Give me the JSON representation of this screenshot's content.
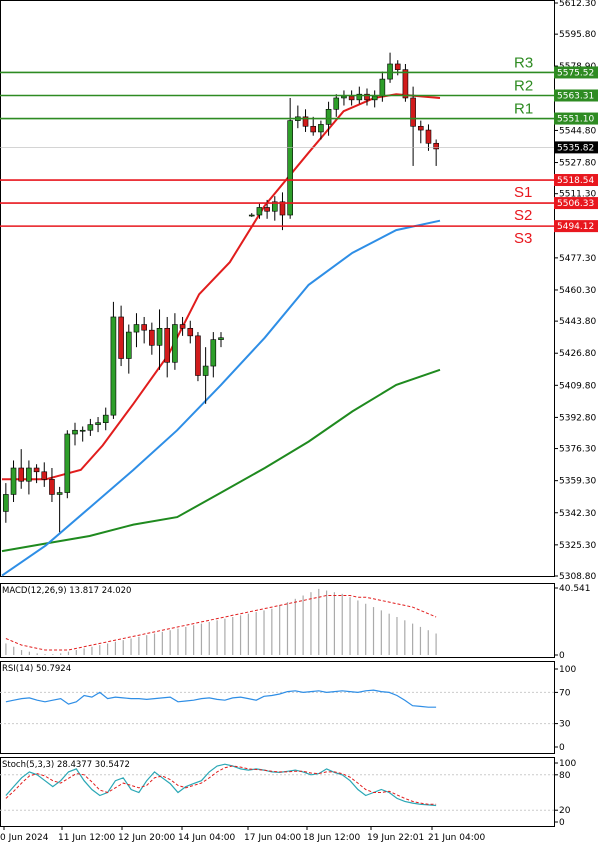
{
  "chart_data": {
    "type": "candlestick",
    "price_axis": {
      "ylim": [
        5308.8,
        5612.3
      ],
      "ticks": [
        "5612.30",
        "5595.80",
        "5578.90",
        "5561.90",
        "5544.80",
        "5527.80",
        "5511.30",
        "5494.10",
        "5477.30",
        "5460.30",
        "5443.80",
        "5426.80",
        "5409.80",
        "5392.80",
        "5376.30",
        "5359.30",
        "5342.30",
        "5325.30",
        "5308.80"
      ]
    },
    "levels": [
      {
        "name": "R3",
        "value": 5575.52,
        "label": "5575.52",
        "color": "#2e8b22"
      },
      {
        "name": "R2",
        "value": 5563.31,
        "label": "5563.31",
        "color": "#2e8b22"
      },
      {
        "name": "R1",
        "value": 5551.1,
        "label": "5551.10",
        "color": "#2e8b22"
      },
      {
        "name": "S1",
        "value": 5518.54,
        "label": "5518.54",
        "color": "#e8171e"
      },
      {
        "name": "S2",
        "value": 5506.33,
        "label": "5506.33",
        "color": "#e8171e"
      },
      {
        "name": "S3",
        "value": 5494.12,
        "label": "5494.12",
        "color": "#e8171e"
      }
    ],
    "current_price": {
      "value": 5535.82,
      "label": "5535.82"
    },
    "x_labels": [
      "0 Jun 2024",
      "11 Jun 12:00",
      "12 Jun 20:00",
      "14 Jun 04:00",
      "17 Jun 04:00",
      "18 Jun 12:00",
      "19 Jun 22:01",
      "21 Jun 04:00"
    ],
    "candles": [
      [
        5343,
        5358,
        5337,
        5352
      ],
      [
        5352,
        5370,
        5348,
        5366
      ],
      [
        5366,
        5376,
        5355,
        5359
      ],
      [
        5359,
        5370,
        5352,
        5366
      ],
      [
        5366,
        5368,
        5358,
        5364
      ],
      [
        5364,
        5369,
        5356,
        5360
      ],
      [
        5360,
        5366,
        5348,
        5352
      ],
      [
        5352,
        5356,
        5332,
        5353
      ],
      [
        5353,
        5386,
        5350,
        5384
      ],
      [
        5384,
        5390,
        5378,
        5386
      ],
      [
        5386,
        5388,
        5380,
        5386
      ],
      [
        5386,
        5392,
        5383,
        5389
      ],
      [
        5389,
        5393,
        5385,
        5390
      ],
      [
        5390,
        5398,
        5386,
        5394
      ],
      [
        5394,
        5454,
        5392,
        5446
      ],
      [
        5446,
        5452,
        5420,
        5424
      ],
      [
        5424,
        5442,
        5416,
        5438
      ],
      [
        5438,
        5448,
        5430,
        5442
      ],
      [
        5442,
        5446,
        5432,
        5439
      ],
      [
        5439,
        5443,
        5426,
        5431
      ],
      [
        5431,
        5450,
        5418,
        5440
      ],
      [
        5440,
        5446,
        5414,
        5422
      ],
      [
        5422,
        5448,
        5418,
        5442
      ],
      [
        5442,
        5446,
        5436,
        5440
      ],
      [
        5440,
        5444,
        5432,
        5436
      ],
      [
        5436,
        5438,
        5412,
        5415
      ],
      [
        5415,
        5430,
        5400,
        5420
      ],
      [
        5420,
        5438,
        5414,
        5434
      ],
      [
        5434,
        5438,
        5430,
        5435
      ],
      [
        null,
        null,
        null,
        null
      ],
      [
        null,
        null,
        null,
        null
      ],
      [
        null,
        null,
        null,
        null
      ],
      [
        5500,
        5501,
        5499,
        5500
      ],
      [
        5500,
        5506,
        5498,
        5504
      ],
      [
        5504,
        5508,
        5498,
        5502
      ],
      [
        5502,
        5510,
        5497,
        5507
      ],
      [
        5507,
        5512,
        5492,
        5500
      ],
      [
        5500,
        5562,
        5498,
        5550
      ],
      [
        5550,
        5558,
        5546,
        5552
      ],
      [
        5552,
        5556,
        5544,
        5547
      ],
      [
        5547,
        5552,
        5542,
        5544
      ],
      [
        5544,
        5550,
        5540,
        5548
      ],
      [
        5548,
        5560,
        5542,
        5556
      ],
      [
        5556,
        5564,
        5552,
        5562
      ],
      [
        5562,
        5566,
        5558,
        5563
      ],
      [
        5563,
        5566,
        5558,
        5561
      ],
      [
        5561,
        5568,
        5559,
        5564
      ],
      [
        5564,
        5567,
        5558,
        5561
      ],
      [
        5561,
        5566,
        5557,
        5563
      ],
      [
        5563,
        5576,
        5560,
        5572
      ],
      [
        5572,
        5586,
        5570,
        5580
      ],
      [
        5580,
        5582,
        5574,
        5577
      ],
      [
        5577,
        5580,
        5560,
        5562
      ],
      [
        5562,
        5568,
        5526,
        5547
      ],
      [
        5547,
        5550,
        5538,
        5545
      ],
      [
        5545,
        5548,
        5534,
        5538
      ],
      [
        5538,
        5540,
        5526,
        5535
      ]
    ],
    "ma_red": [
      [
        0,
        5360
      ],
      [
        0.1,
        5360
      ],
      [
        0.18,
        5365
      ],
      [
        0.23,
        5378
      ],
      [
        0.3,
        5400
      ],
      [
        0.38,
        5426
      ],
      [
        0.45,
        5458
      ],
      [
        0.52,
        5475
      ],
      [
        0.6,
        5505
      ],
      [
        0.7,
        5533
      ],
      [
        0.78,
        5555
      ],
      [
        0.85,
        5562
      ],
      [
        0.9,
        5564
      ],
      [
        0.95,
        5563
      ],
      [
        1,
        5562
      ]
    ],
    "ma_blue": [
      [
        0,
        5309
      ],
      [
        0.1,
        5325
      ],
      [
        0.2,
        5345
      ],
      [
        0.3,
        5365
      ],
      [
        0.4,
        5386
      ],
      [
        0.5,
        5410
      ],
      [
        0.6,
        5435
      ],
      [
        0.7,
        5463
      ],
      [
        0.8,
        5480
      ],
      [
        0.9,
        5492
      ],
      [
        1,
        5497
      ]
    ],
    "ma_green": [
      [
        0,
        5322
      ],
      [
        0.1,
        5326
      ],
      [
        0.2,
        5330
      ],
      [
        0.3,
        5336
      ],
      [
        0.4,
        5340
      ],
      [
        0.5,
        5353
      ],
      [
        0.6,
        5366
      ],
      [
        0.7,
        5380
      ],
      [
        0.8,
        5396
      ],
      [
        0.9,
        5410
      ],
      [
        1,
        5418
      ]
    ],
    "macd": {
      "title": "MACD(12,26,9) 13.817 24.020",
      "ticks": [
        "40.541",
        "0"
      ],
      "ylim": [
        0,
        40.541
      ],
      "hist": [
        7,
        5,
        3,
        2,
        1,
        0.5,
        0.5,
        1,
        2,
        3,
        4,
        5,
        6,
        7,
        8,
        9,
        10,
        11,
        12,
        13,
        14,
        15,
        16,
        17,
        18,
        19,
        20,
        21,
        22,
        23,
        24,
        25,
        26,
        27,
        28,
        30,
        32,
        34,
        36,
        38,
        40,
        39,
        38,
        37,
        35,
        33,
        31,
        29,
        27,
        25,
        23,
        21,
        19,
        17,
        15,
        13
      ],
      "signal": [
        10,
        8,
        6,
        5,
        4,
        3,
        3,
        3,
        3,
        4,
        5,
        6,
        7,
        8,
        9,
        10,
        11,
        12,
        13,
        14,
        15,
        16,
        17,
        18,
        19,
        20,
        21,
        22,
        23,
        24,
        25,
        26,
        27,
        28,
        29,
        30,
        31,
        32,
        33,
        34,
        35,
        36,
        36,
        36,
        36,
        35,
        35,
        34,
        33,
        32,
        31,
        30,
        29,
        27,
        25,
        23
      ]
    },
    "rsi": {
      "title": "RSI(14) 50.7924",
      "ticks": [
        "100",
        "70",
        "30",
        "0"
      ],
      "ylim": [
        0,
        100
      ],
      "values": [
        58,
        60,
        62,
        63,
        60,
        58,
        60,
        62,
        55,
        58,
        66,
        64,
        70,
        62,
        64,
        63,
        62,
        62,
        61,
        62,
        63,
        64,
        58,
        59,
        60,
        62,
        63,
        61,
        60,
        63,
        64,
        62,
        60,
        65,
        66,
        68,
        71,
        72,
        70,
        71,
        72,
        70,
        71,
        72,
        71,
        70,
        72,
        73,
        71,
        70,
        66,
        60,
        53,
        52,
        51,
        51
      ]
    },
    "stoch": {
      "title": "Stoch(5,3,3) 28.4377 30.5472",
      "ticks": [
        "100",
        "80",
        "20",
        "0"
      ],
      "ylim": [
        0,
        100
      ],
      "k": [
        45,
        60,
        75,
        85,
        80,
        70,
        60,
        70,
        85,
        90,
        70,
        55,
        45,
        50,
        70,
        75,
        55,
        50,
        70,
        85,
        75,
        65,
        50,
        60,
        65,
        70,
        85,
        95,
        98,
        95,
        90,
        88,
        90,
        88,
        85,
        84,
        86,
        88,
        85,
        80,
        82,
        90,
        84,
        80,
        70,
        55,
        45,
        50,
        55,
        50,
        40,
        35,
        32,
        30,
        29,
        28
      ],
      "d": [
        40,
        52,
        66,
        78,
        82,
        78,
        70,
        66,
        74,
        82,
        80,
        68,
        54,
        50,
        58,
        66,
        62,
        58,
        62,
        75,
        78,
        72,
        62,
        58,
        62,
        66,
        75,
        85,
        92,
        95,
        93,
        90,
        89,
        88,
        86,
        85,
        85,
        86,
        86,
        83,
        82,
        85,
        85,
        82,
        76,
        66,
        55,
        50,
        50,
        52,
        46,
        40,
        35,
        32,
        30,
        30
      ]
    }
  }
}
